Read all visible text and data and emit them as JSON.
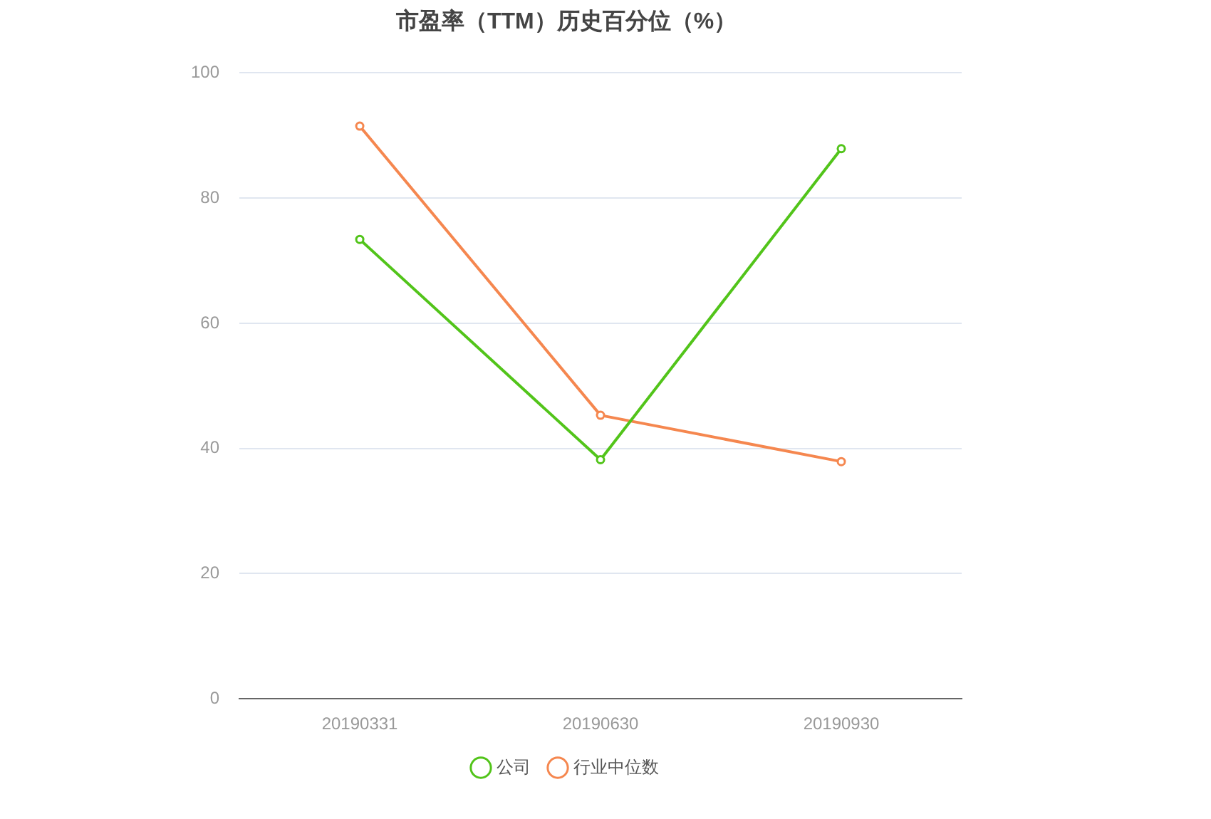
{
  "chart_data": {
    "type": "line",
    "title": "市盈率（TTM）历史百分位（%）",
    "categories": [
      "20190331",
      "20190630",
      "20190930"
    ],
    "series": [
      {
        "name": "公司",
        "color": "#52c41a",
        "values": [
          73.4,
          38.2,
          87.9
        ]
      },
      {
        "name": "行业中位数",
        "color": "#f5874f",
        "values": [
          91.5,
          45.3,
          37.9
        ]
      }
    ],
    "ylim": [
      0,
      100
    ],
    "yticks": [
      0,
      20,
      40,
      60,
      80,
      100
    ],
    "grid": "y",
    "legend": "bottom",
    "marker": "circle",
    "line_style": "solid"
  }
}
